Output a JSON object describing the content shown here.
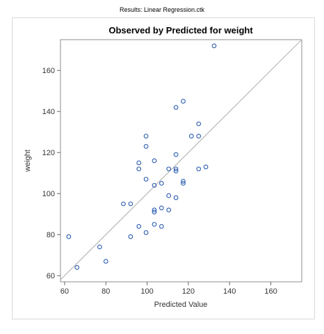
{
  "header": {
    "results_label": "Results: Linear Regression.ctk"
  },
  "colors": {
    "marker": "#2a5db0",
    "reference_line": "#b8b8b8",
    "frame": "#8c8c8c",
    "tick": "#666666"
  },
  "chart_data": {
    "type": "scatter",
    "title": "Observed by Predicted for weight",
    "xlabel": "Predicted Value",
    "ylabel": "weight",
    "xlim": [
      58,
      175
    ],
    "ylim": [
      57,
      175
    ],
    "xticks": [
      60,
      80,
      100,
      120,
      140,
      160
    ],
    "yticks": [
      60,
      80,
      100,
      120,
      140,
      160
    ],
    "grid": false,
    "reference_line": {
      "label": "",
      "slope": 1,
      "intercept": 0
    },
    "points": [
      {
        "x": 62,
        "y": 79
      },
      {
        "x": 66,
        "y": 64
      },
      {
        "x": 77,
        "y": 74
      },
      {
        "x": 80,
        "y": 67
      },
      {
        "x": 88.5,
        "y": 95
      },
      {
        "x": 92,
        "y": 79
      },
      {
        "x": 92,
        "y": 95
      },
      {
        "x": 96,
        "y": 115
      },
      {
        "x": 96,
        "y": 112
      },
      {
        "x": 96,
        "y": 84
      },
      {
        "x": 99.5,
        "y": 128
      },
      {
        "x": 99.5,
        "y": 123
      },
      {
        "x": 99.5,
        "y": 107
      },
      {
        "x": 99.5,
        "y": 81
      },
      {
        "x": 103.5,
        "y": 116
      },
      {
        "x": 103.5,
        "y": 104
      },
      {
        "x": 103.5,
        "y": 92
      },
      {
        "x": 103.5,
        "y": 91
      },
      {
        "x": 103.5,
        "y": 85
      },
      {
        "x": 107,
        "y": 105
      },
      {
        "x": 107,
        "y": 93
      },
      {
        "x": 107,
        "y": 84
      },
      {
        "x": 110.5,
        "y": 112
      },
      {
        "x": 110.5,
        "y": 99
      },
      {
        "x": 110.5,
        "y": 92
      },
      {
        "x": 114,
        "y": 142
      },
      {
        "x": 114,
        "y": 119
      },
      {
        "x": 114,
        "y": 112
      },
      {
        "x": 114,
        "y": 111
      },
      {
        "x": 114,
        "y": 98
      },
      {
        "x": 117.5,
        "y": 145
      },
      {
        "x": 117.5,
        "y": 106
      },
      {
        "x": 117.5,
        "y": 105
      },
      {
        "x": 121.5,
        "y": 128
      },
      {
        "x": 125,
        "y": 134
      },
      {
        "x": 125,
        "y": 128
      },
      {
        "x": 125,
        "y": 112
      },
      {
        "x": 128.5,
        "y": 113
      },
      {
        "x": 132.5,
        "y": 172
      }
    ]
  }
}
